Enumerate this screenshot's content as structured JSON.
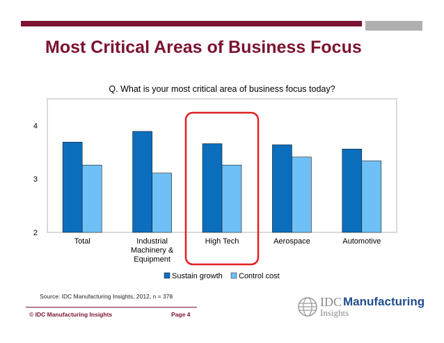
{
  "slide": {
    "title": "Most Critical Areas of Business Focus",
    "source": "Source: IDC Manufacturing Insights, 2012, n = 378",
    "copyright": "© IDC Manufacturing Insights",
    "page": "Page 4"
  },
  "logo": {
    "brand": "IDC",
    "product": "Manufacturing",
    "sub": "Insights"
  },
  "colors": {
    "brand_maroon": "#7b1230",
    "series_dark": "#0a6ebd",
    "series_light": "#6fc0f7",
    "highlight": "#e02020"
  },
  "chart_data": {
    "type": "bar",
    "title": "Q. What is your most critical area of business focus today?",
    "categories": [
      "Total",
      "Industrial\nMachinery &\nEquipment",
      "High Tech",
      "Aerospace",
      "Automotive"
    ],
    "series": [
      {
        "name": "Sustain growth",
        "values": [
          3.69,
          3.89,
          3.66,
          3.64,
          3.56
        ]
      },
      {
        "name": "Control cost",
        "values": [
          3.26,
          3.11,
          3.26,
          3.41,
          3.34
        ]
      }
    ],
    "ylim": [
      2,
      4.5
    ],
    "yticks": [
      2,
      3,
      4
    ],
    "xlabel": "",
    "ylabel": "",
    "grid": false,
    "legend": "bottom",
    "highlighted_category": "High Tech"
  }
}
